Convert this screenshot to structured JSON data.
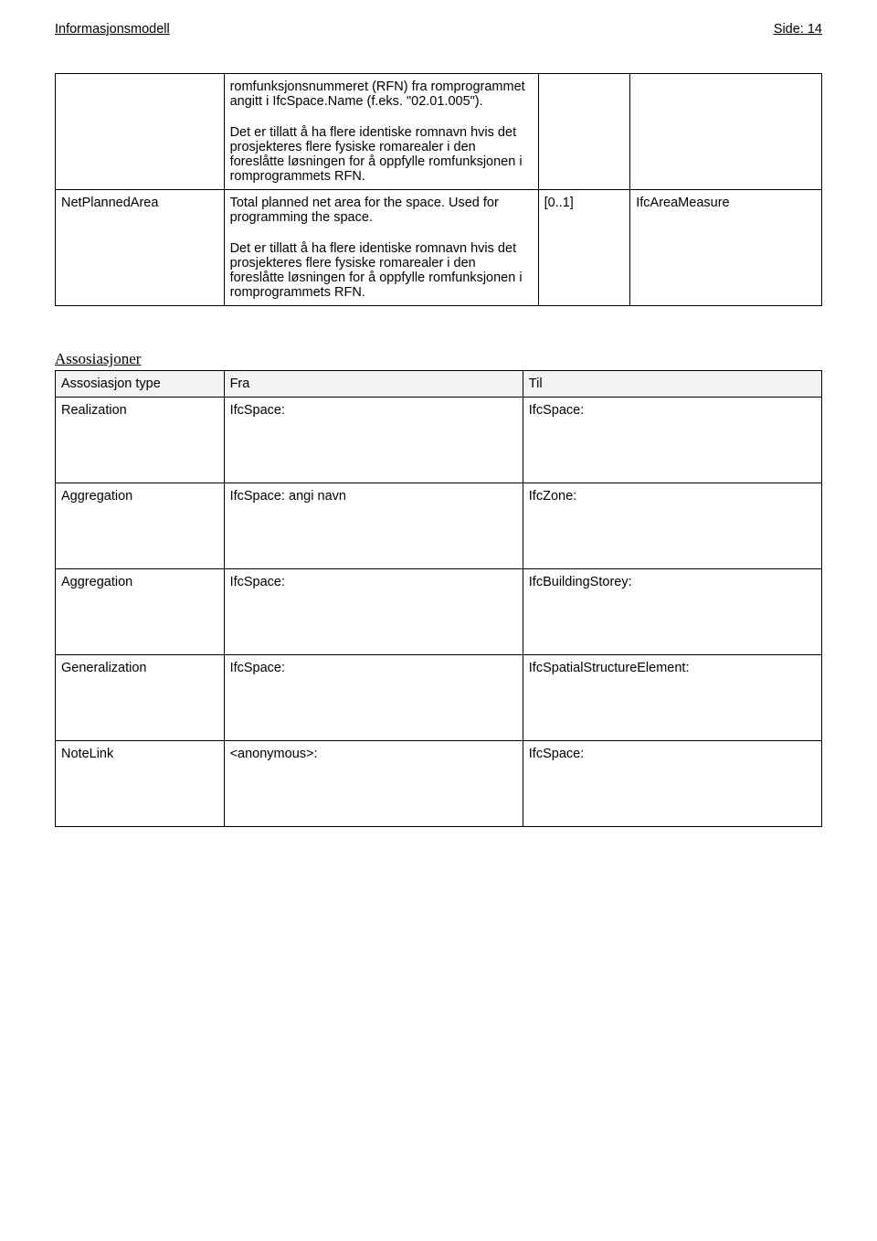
{
  "header": {
    "left": "Informasjonsmodell",
    "right": "Side: 14"
  },
  "table1": {
    "rows": [
      {
        "c1": "",
        "c2a": "romfunksjonsnummeret (RFN) fra romprogrammet angitt i IfcSpace.Name (f.eks. \"02.01.005\").",
        "c2b": "Det er tillatt å ha flere identiske romnavn hvis det prosjekteres flere fysiske romarealer i den foreslåtte løsningen for å oppfylle romfunksjonen i romprogrammets RFN.",
        "c3": "",
        "c4": ""
      },
      {
        "c1": "NetPlannedArea",
        "c2a": " Total planned net area for the space. Used for programming the space.",
        "c2b": "Det er tillatt å ha flere identiske romnavn hvis det prosjekteres flere fysiske romarealer i den foreslåtte løsningen for å oppfylle romfunksjonen i romprogrammets RFN.",
        "c3": "[0..1]",
        "c4": "IfcAreaMeasure"
      }
    ]
  },
  "assoc": {
    "title": "Assosiasjoner",
    "headers": {
      "c1": "Assosiasjon type",
      "c2": "Fra",
      "c3": "Til"
    },
    "rows": [
      {
        "c1": "Realization",
        "c2": "IfcSpace:",
        "c3": "IfcSpace:"
      },
      {
        "c1": "Aggregation",
        "c2": "IfcSpace:   angi navn",
        "c3": "IfcZone:"
      },
      {
        "c1": "Aggregation",
        "c2": "IfcSpace:",
        "c3": "IfcBuildingStorey:"
      },
      {
        "c1": "Generalization",
        "c2": "IfcSpace:",
        "c3": "IfcSpatialStructureElement:"
      },
      {
        "c1": "NoteLink",
        "c2": "<anonymous>:",
        "c3": "IfcSpace:"
      }
    ]
  }
}
